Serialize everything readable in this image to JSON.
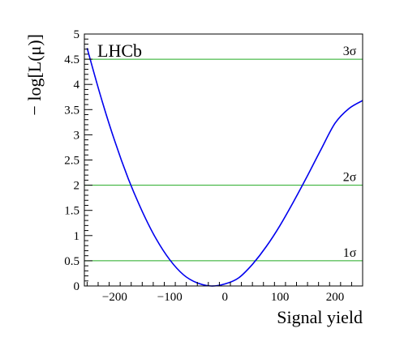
{
  "chart_data": {
    "type": "line",
    "xlabel": "Signal yield",
    "ylabel": "− log[L(μ)]",
    "xlim": [
      -255,
      250
    ],
    "ylim": [
      0,
      5
    ],
    "xticks": [
      "−200",
      "−100",
      "0",
      "100",
      "200"
    ],
    "xtick_values": [
      -200,
      -100,
      0,
      100,
      200
    ],
    "yticks": [
      "0",
      "0.5",
      "1",
      "1.5",
      "2",
      "2.5",
      "3",
      "3.5",
      "4",
      "4.5",
      "5"
    ],
    "ytick_values": [
      0,
      0.5,
      1,
      1.5,
      2,
      2.5,
      3,
      3.5,
      4,
      4.5,
      5
    ],
    "annotation": "LHCb",
    "reference_lines": [
      {
        "label": "1σ",
        "y": 0.5
      },
      {
        "label": "2σ",
        "y": 2.0
      },
      {
        "label": "3σ",
        "y": 4.5
      }
    ],
    "series": [
      {
        "color": "#0000ee",
        "points": [
          [
            -250,
            4.72
          ],
          [
            -225,
            3.75
          ],
          [
            -200,
            2.88
          ],
          [
            -175,
            2.12
          ],
          [
            -150,
            1.48
          ],
          [
            -125,
            0.94
          ],
          [
            -100,
            0.52
          ],
          [
            -75,
            0.22
          ],
          [
            -50,
            0.06
          ],
          [
            -25,
            0.0
          ],
          [
            0,
            0.04
          ],
          [
            25,
            0.16
          ],
          [
            50,
            0.43
          ],
          [
            75,
            0.78
          ],
          [
            100,
            1.2
          ],
          [
            125,
            1.68
          ],
          [
            150,
            2.19
          ],
          [
            175,
            2.72
          ],
          [
            200,
            3.23
          ],
          [
            225,
            3.52
          ],
          [
            250,
            3.68
          ]
        ]
      }
    ],
    "line_colors": {
      "curve": "#0000ee",
      "reference": "#22aa22"
    }
  }
}
